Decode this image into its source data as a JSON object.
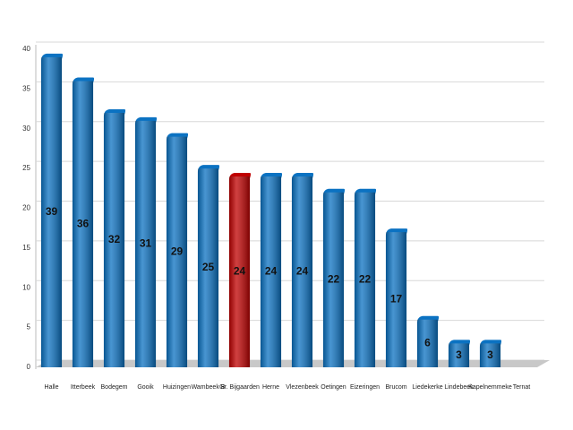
{
  "chart_data": {
    "type": "bar",
    "categories": [
      "Halle",
      "Itterbeek",
      "Bodegem",
      "Gooik",
      "Huizingen",
      "Wambeek B",
      "Gr. Bijgaarden",
      "Herne",
      "Vlezenbeek",
      "Oetingen",
      "Eizeringen",
      "Brucom",
      "Liedekerke",
      "Lindebeek",
      "Kapelnemmeke",
      "Ternat"
    ],
    "values": [
      39,
      36,
      32,
      31,
      29,
      25,
      24,
      24,
      24,
      22,
      22,
      17,
      6,
      3,
      3,
      null
    ],
    "colors": [
      "#0b72c2",
      "#0b72c2",
      "#0b72c2",
      "#0b72c2",
      "#0b72c2",
      "#0b72c2",
      "#c00000",
      "#0b72c2",
      "#0b72c2",
      "#0b72c2",
      "#0b72c2",
      "#0b72c2",
      "#0b72c2",
      "#0b72c2",
      "#0b72c2",
      "#0b72c2"
    ],
    "ylim": [
      0,
      40
    ],
    "yticks": [
      0,
      5,
      10,
      15,
      20,
      25,
      30,
      35,
      40
    ],
    "grid": true
  }
}
